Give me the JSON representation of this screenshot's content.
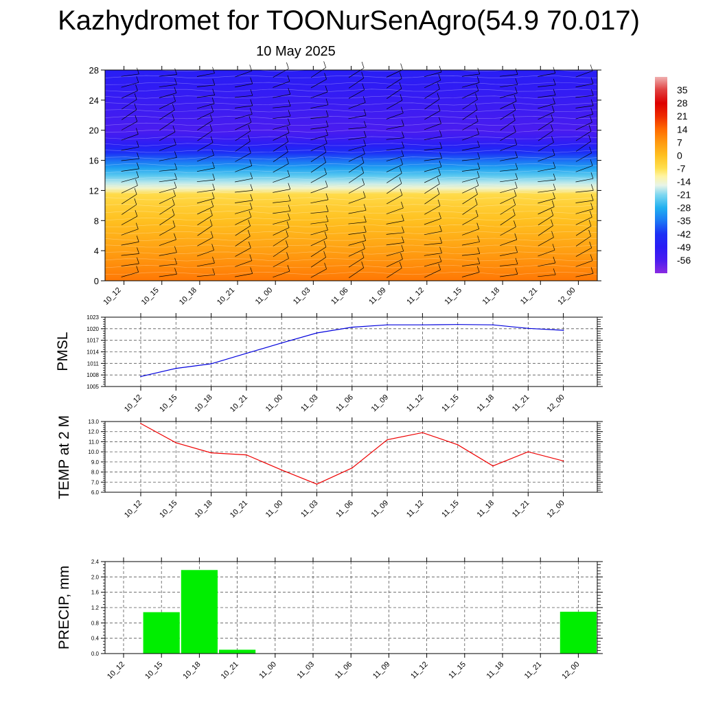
{
  "title": "Kazhydromet for TOONurSenAgro(54.9 70.017)",
  "subtitle": "10 May 2025",
  "colors": {
    "pmsl_line": "#0000dd",
    "temp_line": "#ee0000",
    "precip_bar": "#00ee00"
  },
  "chart_data": [
    {
      "type": "heatmap",
      "name": "cross-section",
      "x": [
        "10_12",
        "10_15",
        "10_18",
        "10_21",
        "11_00",
        "11_03",
        "11_06",
        "11_09",
        "11_12",
        "11_15",
        "11_18",
        "11_21",
        "12_00"
      ],
      "y_ticks": [
        0,
        4,
        8,
        12,
        16,
        20,
        24,
        28
      ],
      "ylim": [
        0,
        28
      ],
      "colorbar": {
        "labels": [
          "35",
          "28",
          "21",
          "14",
          "7",
          "0",
          "-7",
          "-14",
          "-21",
          "-28",
          "-35",
          "-42",
          "-49",
          "-56"
        ],
        "range": [
          -63,
          42
        ],
        "stops": [
          {
            "v": -63,
            "c": "#8a2be2"
          },
          {
            "v": -56,
            "c": "#4a1cf0"
          },
          {
            "v": -49,
            "c": "#2a1cf5"
          },
          {
            "v": -42,
            "c": "#1c30f5"
          },
          {
            "v": -35,
            "c": "#1c78f5"
          },
          {
            "v": -28,
            "c": "#20b0f0"
          },
          {
            "v": -21,
            "c": "#80d8f0"
          },
          {
            "v": -16,
            "c": "#e8f4e8"
          },
          {
            "v": -11,
            "c": "#fff4a0"
          },
          {
            "v": -7,
            "c": "#ffe050"
          },
          {
            "v": 0,
            "c": "#ffc020"
          },
          {
            "v": 7,
            "c": "#ff9a10"
          },
          {
            "v": 14,
            "c": "#ff6a00"
          },
          {
            "v": 21,
            "c": "#ee2a00"
          },
          {
            "v": 28,
            "c": "#dd0000"
          },
          {
            "v": 35,
            "c": "#e04040"
          },
          {
            "v": 42,
            "c": "#f0b0b0"
          }
        ]
      },
      "temperature_profile": [
        {
          "h": 0,
          "t": 12
        },
        {
          "h": 2,
          "t": 9
        },
        {
          "h": 4,
          "t": 6
        },
        {
          "h": 6,
          "t": 3
        },
        {
          "h": 8,
          "t": 0
        },
        {
          "h": 10,
          "t": -3
        },
        {
          "h": 11.5,
          "t": -6
        },
        {
          "h": 12.3,
          "t": -14
        },
        {
          "h": 13,
          "t": -18
        },
        {
          "h": 14,
          "t": -24
        },
        {
          "h": 15,
          "t": -30
        },
        {
          "h": 16,
          "t": -36
        },
        {
          "h": 17,
          "t": -42
        },
        {
          "h": 18,
          "t": -48
        },
        {
          "h": 19,
          "t": -53
        },
        {
          "h": 20,
          "t": -56
        },
        {
          "h": 22,
          "t": -54
        },
        {
          "h": 24,
          "t": -52
        },
        {
          "h": 26,
          "t": -50
        },
        {
          "h": 28,
          "t": -48
        }
      ]
    },
    {
      "type": "line",
      "name": "pmsl",
      "ylabel": "PMSL",
      "x": [
        "10_12",
        "10_15",
        "10_18",
        "10_21",
        "11_00",
        "11_03",
        "11_06",
        "11_09",
        "11_12",
        "11_15",
        "11_18",
        "11_21",
        "12_00"
      ],
      "values": [
        1007.6,
        1009.7,
        1010.9,
        1013.6,
        1016.3,
        1018.9,
        1020.4,
        1021.0,
        1021.0,
        1021.1,
        1021.0,
        1020.1,
        1019.6
      ],
      "ylim": [
        1005,
        1023
      ],
      "y_ticks": [
        "1005",
        "1008",
        "1011",
        "1014",
        "1017",
        "1020",
        "1023"
      ]
    },
    {
      "type": "line",
      "name": "temp",
      "ylabel": "TEMP at 2 M",
      "x": [
        "10_12",
        "10_15",
        "10_18",
        "10_21",
        "11_00",
        "11_03",
        "11_06",
        "11_09",
        "11_12",
        "11_15",
        "11_18",
        "11_21",
        "12_00"
      ],
      "values": [
        12.8,
        10.9,
        9.9,
        9.7,
        8.2,
        6.8,
        8.4,
        11.2,
        11.9,
        10.7,
        8.6,
        10.0,
        9.1
      ],
      "ylim": [
        6.0,
        13.0
      ],
      "y_ticks": [
        "6.0",
        "7.0",
        "8.0",
        "9.0",
        "10.0",
        "11.0",
        "12.0",
        "13.0"
      ]
    },
    {
      "type": "bar",
      "name": "precip",
      "ylabel": "PRECIP, mm",
      "x": [
        "10_12",
        "10_15",
        "10_18",
        "10_21",
        "11_00",
        "11_03",
        "11_06",
        "11_09",
        "11_12",
        "11_15",
        "11_18",
        "11_21",
        "12_00"
      ],
      "values": [
        0,
        1.08,
        2.18,
        0.1,
        0,
        0,
        0,
        0,
        0,
        0,
        0,
        0,
        1.09
      ],
      "ylim": [
        0,
        2.4
      ],
      "y_ticks": [
        "0.0",
        "0.4",
        "0.8",
        "1.2",
        "1.6",
        "2.0",
        "2.4"
      ]
    }
  ]
}
